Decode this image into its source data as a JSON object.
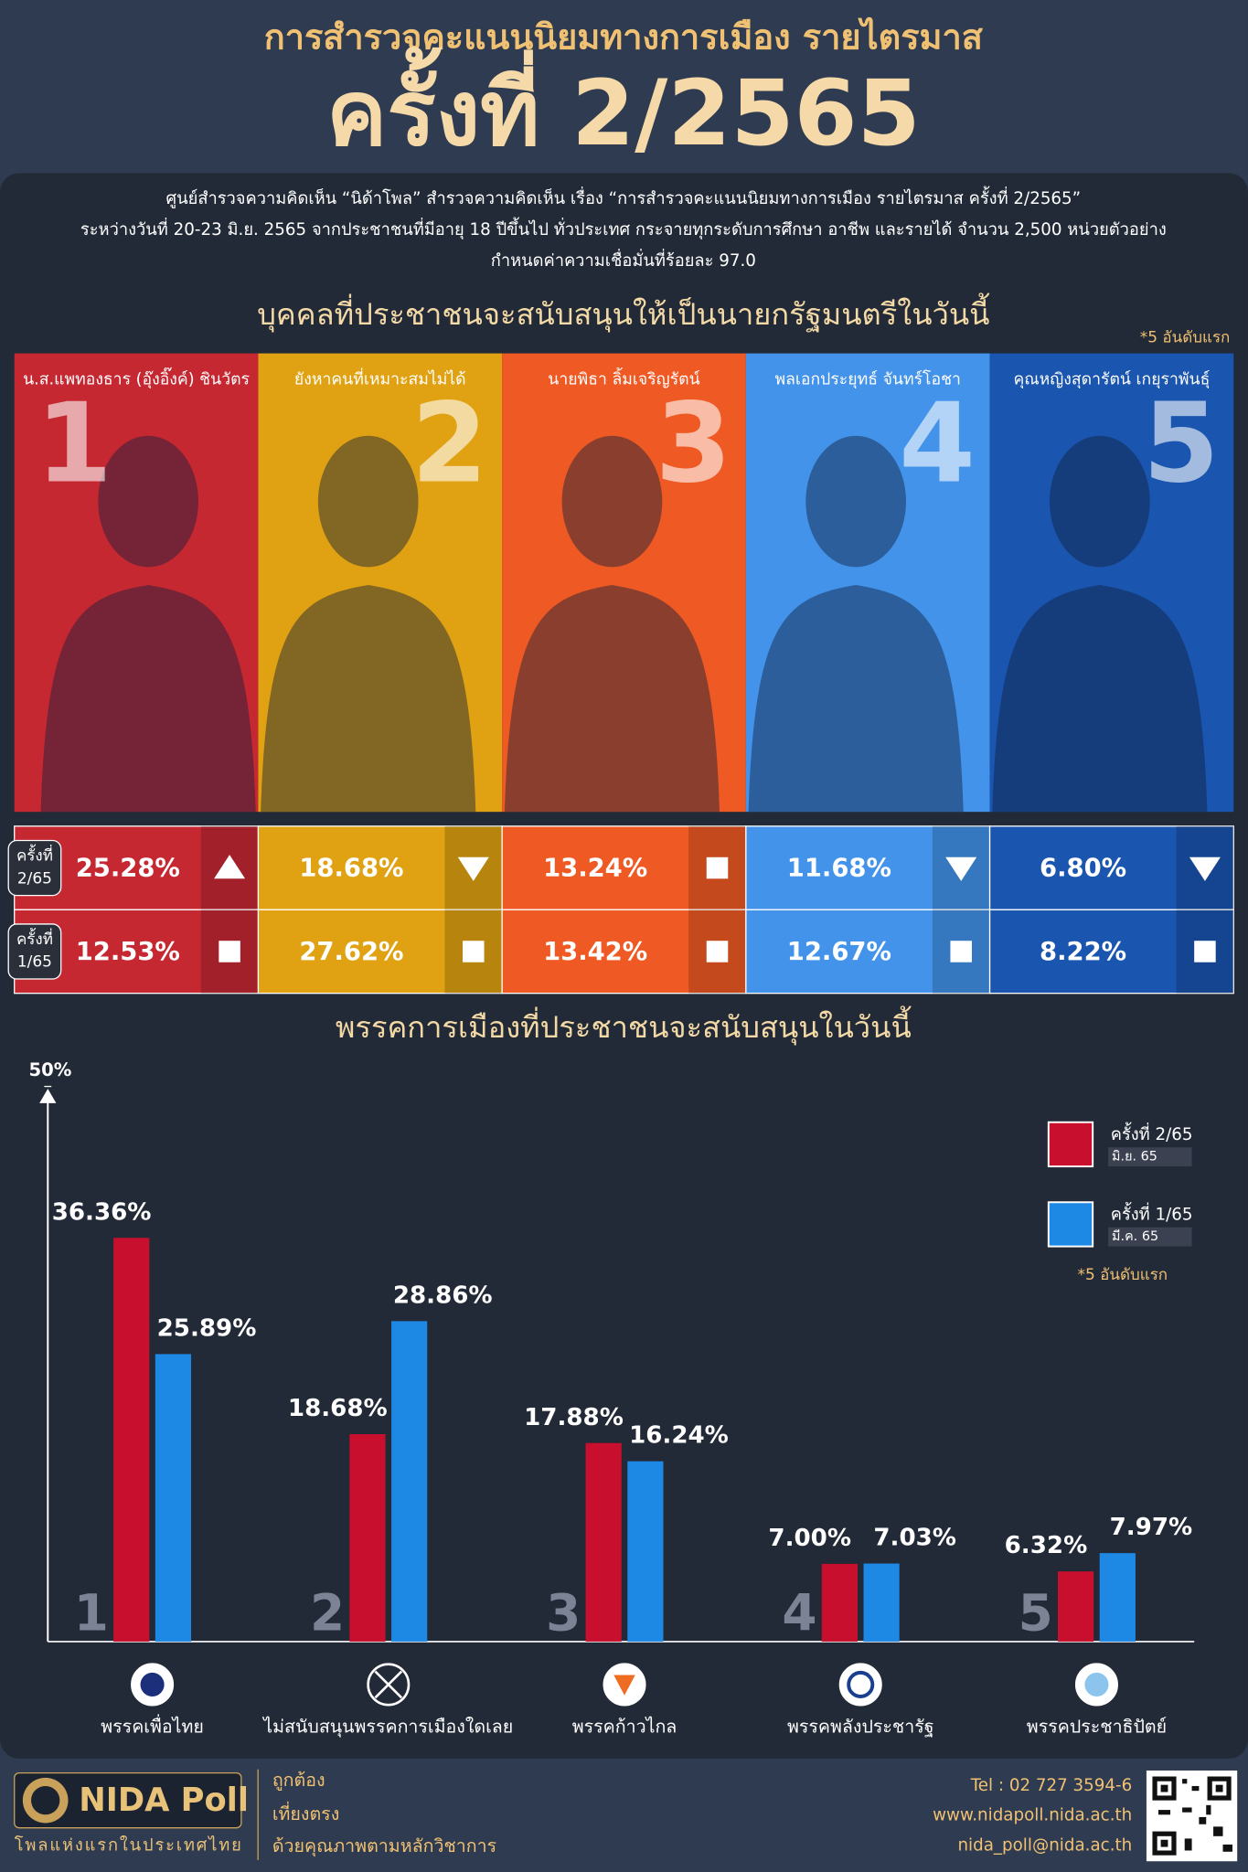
{
  "header": {
    "title": "การสำรวจคะแนนนิยมทางการเมือง รายไตรมาส",
    "subtitle": "ครั้งที่ 2/2565"
  },
  "description": [
    "ศูนย์สำรวจความคิดเห็น “นิด้าโพล” สำรวจความคิดเห็น เรื่อง “การสำรวจคะแนนนิยมทางการเมือง รายไตรมาส ครั้งที่ 2/2565”",
    "ระหว่างวันที่ 20-23 มิ.ย. 2565 จากประชาชนที่มีอายุ 18 ปีขึ้นไป ทั่วประเทศ กระจายทุกระดับการศึกษา อาชีพ และรายได้ จำนวน 2,500 หน่วยตัวอย่าง",
    "กำหนดค่าความเชื่อมั่นที่ร้อยละ 97.0"
  ],
  "pm_section": {
    "title": "บุคคลที่ประชาชนจะสนับสนุนให้เป็นนายกรัฐมนตรีในวันนี้",
    "note": "*5 อันดับแรก",
    "round_labels": [
      [
        "ครั้งที่",
        "2/65"
      ],
      [
        "ครั้งที่",
        "1/65"
      ]
    ],
    "candidates": [
      {
        "rank": 1,
        "name": "น.ส.แพทองธาร (อุ๊งอิ๊งค์) ชินวัตร",
        "color": "#c62832",
        "current": "25.28%",
        "trend": "up",
        "previous": "12.53%"
      },
      {
        "rank": 2,
        "name": "ยังหาคนที่เหมาะสมไม่ได้",
        "color": "#e0a212",
        "current": "18.68%",
        "trend": "down",
        "previous": "27.62%"
      },
      {
        "rank": 3,
        "name": "นายพิธา ลิ้มเจริญรัตน์",
        "color": "#ef5a24",
        "current": "13.24%",
        "trend": "same",
        "previous": "13.42%"
      },
      {
        "rank": 4,
        "name": "พลเอกประยุทธ์ จันทร์โอชา",
        "color": "#4393ea",
        "current": "11.68%",
        "trend": "down",
        "previous": "12.67%"
      },
      {
        "rank": 5,
        "name": "คุณหญิงสุดารัตน์ เกยุราพันธุ์",
        "color": "#1a55b0",
        "current": "6.80%",
        "trend": "down",
        "previous": "8.22%"
      }
    ]
  },
  "chart_data": {
    "type": "bar",
    "title": "พรรคการเมืองที่ประชาชนจะสนับสนุนในวันนี้",
    "categories": [
      "พรรคเพื่อไทย",
      "ไม่สนับสนุนพรรคการเมืองใดเลย",
      "พรรคก้าวไกล",
      "พรรคพลังประชารัฐ",
      "พรรคประชาธิปัตย์"
    ],
    "ranks": [
      1,
      2,
      3,
      4,
      5
    ],
    "ylim": [
      0,
      50
    ],
    "yticks": [
      {
        "value": 50,
        "label": "50%"
      }
    ],
    "note": "*5 อันดับแรก",
    "series": [
      {
        "name": "ครั้งที่ 2/65",
        "period": "มิ.ย. 65",
        "color": "#c8102e",
        "values": [
          36.36,
          18.68,
          17.88,
          7.0,
          6.32
        ],
        "value_labels": [
          "36.36%",
          "18.68%",
          "17.88%",
          "7.00%",
          "6.32%"
        ]
      },
      {
        "name": "ครั้งที่ 1/65",
        "period": "มี.ค. 65",
        "color": "#1e88e5",
        "values": [
          25.89,
          28.86,
          16.24,
          7.03,
          7.97
        ],
        "value_labels": [
          "25.89%",
          "28.86%",
          "16.24%",
          "7.03%",
          "7.97%"
        ]
      }
    ]
  },
  "footer": {
    "brand": "NIDA Poll",
    "tagline": "โพลแห่งแรกในประเทศไทย",
    "values": [
      "ถูกต้อง",
      "เที่ยงตรง",
      "ด้วยคุณภาพตามหลักวิชาการ"
    ],
    "contacts": [
      "Tel : 02 727 3594-6",
      "www.nidapoll.nida.ac.th",
      "nida_poll@nida.ac.th"
    ]
  }
}
